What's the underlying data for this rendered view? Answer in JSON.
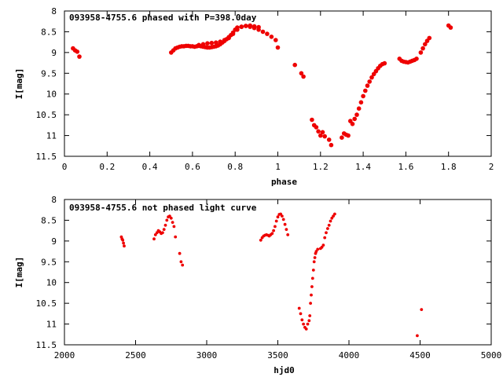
{
  "chart_data": [
    {
      "type": "scatter",
      "title": "093958-4755.6 phased with P=398.0day",
      "xlabel": "phase",
      "ylabel": "I[mag]",
      "xlim": [
        0,
        2
      ],
      "ylim": [
        11.5,
        8
      ],
      "y_inverted": true,
      "xticks": [
        "0",
        "0.2",
        "0.4",
        "0.6",
        "0.8",
        "1",
        "1.2",
        "1.4",
        "1.6",
        "1.8",
        "2"
      ],
      "yticks": [
        "8",
        "8.5",
        "9",
        "9.5",
        "10",
        "10.5",
        "11",
        "11.5"
      ],
      "grid": false,
      "legend": "none",
      "marker_color": "#ee0000",
      "series": [
        {
          "x": [
            0.04,
            0.05,
            0.06,
            0.07,
            0.5,
            0.51,
            0.52,
            0.53,
            0.54,
            0.55,
            0.56,
            0.57,
            0.58,
            0.59,
            0.6,
            0.61,
            0.62,
            0.63,
            0.64,
            0.65,
            0.66,
            0.67,
            0.68,
            0.69,
            0.7,
            0.71,
            0.72,
            0.73,
            0.74,
            0.75,
            0.76,
            0.77,
            0.78,
            0.79,
            0.8,
            0.63,
            0.65,
            0.67,
            0.69,
            0.71,
            0.73,
            0.75,
            0.77,
            0.79,
            0.81,
            0.83,
            0.85,
            0.87,
            0.89,
            0.91,
            0.81,
            0.83,
            0.85,
            0.87,
            0.89,
            0.91,
            0.93,
            0.95,
            0.97,
            0.99,
            1.0,
            1.08,
            1.11,
            1.12,
            1.16,
            1.17,
            1.18,
            1.19,
            1.2,
            1.21,
            1.22,
            1.24,
            1.25,
            1.3,
            1.31,
            1.32,
            1.33,
            1.34,
            1.35,
            1.36,
            1.37,
            1.38,
            1.39,
            1.4,
            1.41,
            1.42,
            1.43,
            1.44,
            1.45,
            1.46,
            1.47,
            1.48,
            1.49,
            1.5,
            1.57,
            1.58,
            1.59,
            1.6,
            1.61,
            1.62,
            1.63,
            1.64,
            1.65,
            1.67,
            1.68,
            1.69,
            1.7,
            1.71,
            1.8,
            1.81
          ],
          "y": [
            8.9,
            8.95,
            8.98,
            9.1,
            9.0,
            8.95,
            8.9,
            8.88,
            8.86,
            8.85,
            8.85,
            8.84,
            8.84,
            8.85,
            8.85,
            8.86,
            8.85,
            8.84,
            8.85,
            8.86,
            8.87,
            8.88,
            8.88,
            8.87,
            8.86,
            8.85,
            8.83,
            8.8,
            8.76,
            8.72,
            8.68,
            8.63,
            8.58,
            8.52,
            8.45,
            8.82,
            8.8,
            8.78,
            8.77,
            8.76,
            8.74,
            8.7,
            8.65,
            8.55,
            8.45,
            8.38,
            8.36,
            8.35,
            8.37,
            8.39,
            8.4,
            8.38,
            8.36,
            8.38,
            8.41,
            8.45,
            8.5,
            8.55,
            8.62,
            8.7,
            8.88,
            9.3,
            9.5,
            9.58,
            10.62,
            10.75,
            10.8,
            10.9,
            11.0,
            10.92,
            11.02,
            11.1,
            11.23,
            11.05,
            10.95,
            10.98,
            11.0,
            10.65,
            10.72,
            10.6,
            10.5,
            10.35,
            10.2,
            10.05,
            9.92,
            9.8,
            9.7,
            9.6,
            9.52,
            9.45,
            9.38,
            9.32,
            9.28,
            9.26,
            9.15,
            9.2,
            9.22,
            9.23,
            9.24,
            9.22,
            9.2,
            9.18,
            9.15,
            9.0,
            8.9,
            8.8,
            8.72,
            8.65,
            8.35,
            8.4
          ]
        }
      ]
    },
    {
      "type": "scatter",
      "title": "093958-4755.6 not phased light curve",
      "xlabel": "hjd0",
      "ylabel": "I[mag]",
      "xlim": [
        2000,
        5000
      ],
      "ylim": [
        11.5,
        8
      ],
      "y_inverted": true,
      "xticks": [
        "2000",
        "2500",
        "3000",
        "3500",
        "4000",
        "4500",
        "5000"
      ],
      "yticks": [
        "8",
        "8.5",
        "9",
        "9.5",
        "10",
        "10.5",
        "11",
        "11.5"
      ],
      "grid": false,
      "legend": "none",
      "marker_color": "#ee0000",
      "series": [
        {
          "x": [
            2400,
            2405,
            2410,
            2415,
            2420,
            2630,
            2640,
            2650,
            2660,
            2670,
            2680,
            2690,
            2700,
            2710,
            2720,
            2730,
            2740,
            2750,
            2760,
            2770,
            2780,
            2810,
            2820,
            2830,
            3380,
            3390,
            3400,
            3410,
            3420,
            3430,
            3440,
            3450,
            3460,
            3470,
            3480,
            3490,
            3500,
            3510,
            3520,
            3530,
            3540,
            3550,
            3560,
            3570,
            3650,
            3660,
            3670,
            3680,
            3690,
            3700,
            3710,
            3720,
            3725,
            3730,
            3735,
            3740,
            3745,
            3750,
            3755,
            3760,
            3765,
            3770,
            3780,
            3800,
            3810,
            3820,
            3830,
            3840,
            3850,
            3860,
            3870,
            3880,
            3890,
            3900,
            4480,
            4510
          ],
          "y": [
            8.9,
            8.95,
            8.98,
            9.05,
            9.12,
            8.95,
            8.85,
            8.8,
            8.75,
            8.78,
            8.82,
            8.8,
            8.72,
            8.62,
            8.5,
            8.42,
            8.4,
            8.45,
            8.55,
            8.65,
            8.9,
            9.3,
            9.5,
            9.58,
            8.98,
            8.92,
            8.88,
            8.86,
            8.85,
            8.86,
            8.88,
            8.85,
            8.82,
            8.75,
            8.65,
            8.52,
            8.42,
            8.36,
            8.35,
            8.4,
            8.48,
            8.6,
            8.72,
            8.85,
            10.62,
            10.75,
            10.9,
            11.0,
            11.08,
            11.12,
            11.0,
            10.92,
            10.8,
            10.5,
            10.3,
            10.1,
            9.9,
            9.7,
            9.5,
            9.4,
            9.3,
            9.25,
            9.2,
            9.18,
            9.15,
            9.1,
            8.92,
            8.8,
            8.7,
            8.62,
            8.52,
            8.45,
            8.4,
            8.35,
            11.28,
            10.65
          ]
        }
      ]
    }
  ]
}
